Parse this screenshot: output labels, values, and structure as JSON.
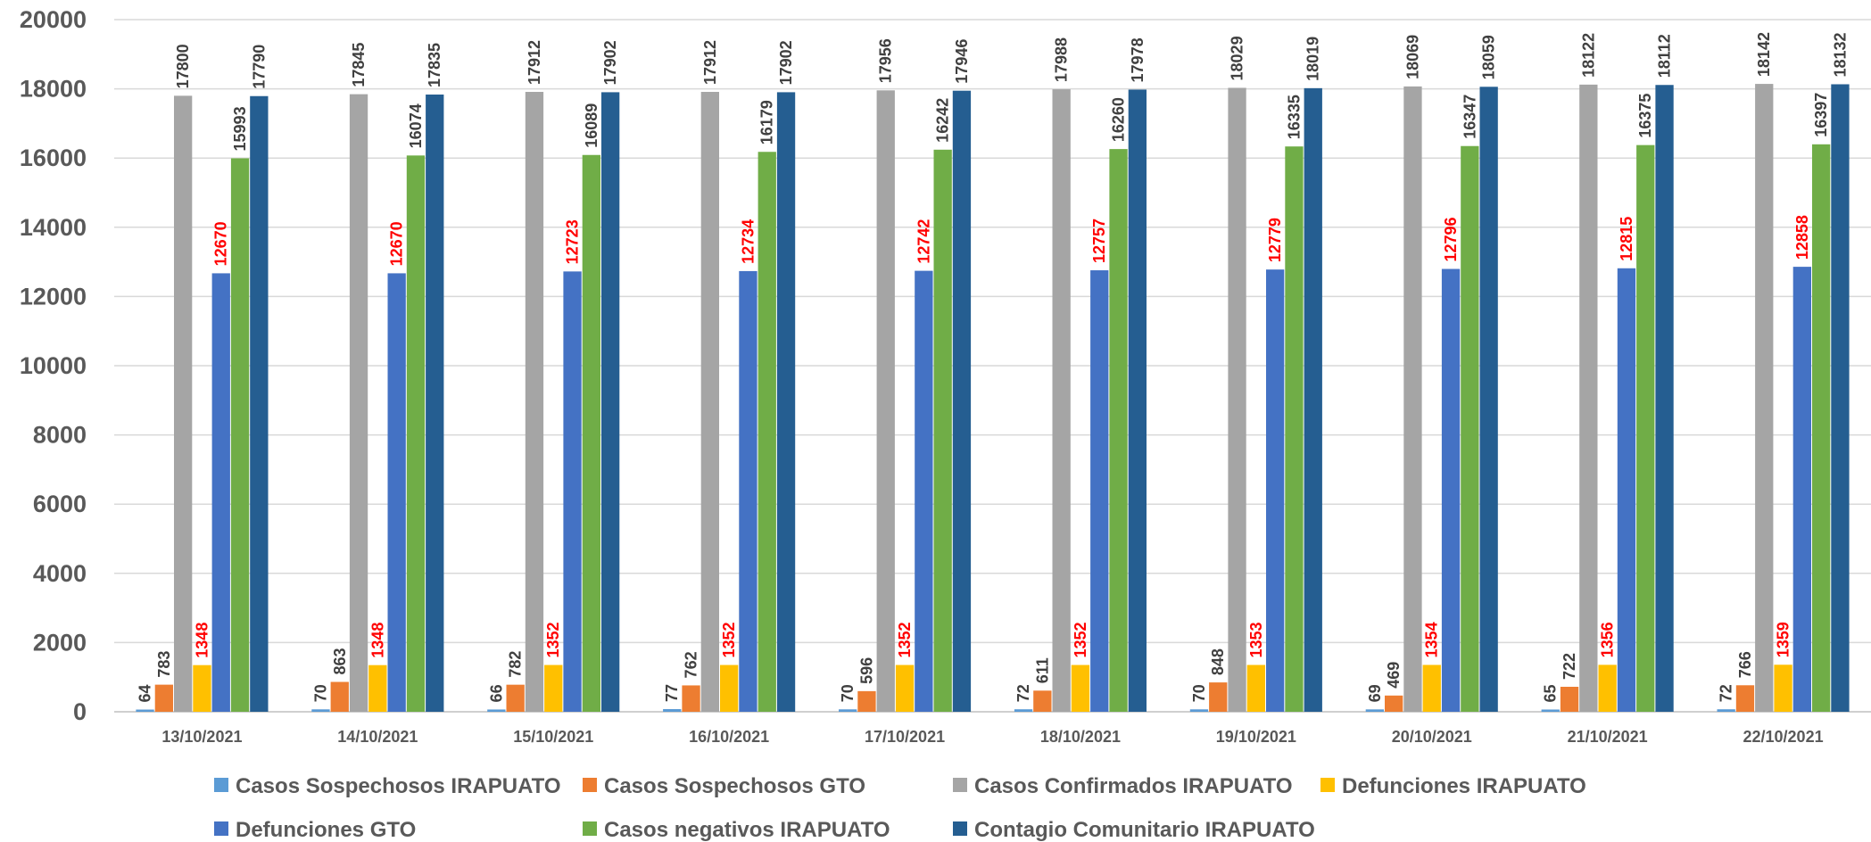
{
  "chart_data": {
    "type": "bar",
    "categories": [
      "13/10/2021",
      "14/10/2021",
      "15/10/2021",
      "16/10/2021",
      "17/10/2021",
      "18/10/2021",
      "19/10/2021",
      "20/10/2021",
      "21/10/2021",
      "22/10/2021"
    ],
    "ylim": [
      0,
      20000
    ],
    "yticks": [
      0,
      2000,
      4000,
      6000,
      8000,
      10000,
      12000,
      14000,
      16000,
      18000,
      20000
    ],
    "grid": true,
    "legend_position": "bottom",
    "series": [
      {
        "name": "Casos Sospechosos IRAPUATO",
        "color": "#5b9bd5",
        "label_color": "#404040",
        "values": [
          64,
          70,
          66,
          77,
          70,
          72,
          70,
          69,
          65,
          72
        ]
      },
      {
        "name": "Casos Sospechosos GTO",
        "color": "#ed7d31",
        "label_color": "#404040",
        "values": [
          783,
          863,
          782,
          762,
          596,
          611,
          848,
          469,
          722,
          766
        ]
      },
      {
        "name": "Casos Confirmados IRAPUATO",
        "color": "#a5a5a5",
        "label_color": "#404040",
        "values": [
          17800,
          17845,
          17912,
          17912,
          17956,
          17988,
          18029,
          18069,
          18122,
          18142
        ]
      },
      {
        "name": "Defunciones IRAPUATO",
        "color": "#ffc000",
        "label_color": "#ff0000",
        "values": [
          1348,
          1348,
          1352,
          1352,
          1352,
          1352,
          1353,
          1354,
          1356,
          1359
        ]
      },
      {
        "name": "Defunciones GTO",
        "color": "#4472c4",
        "label_color": "#ff0000",
        "values": [
          12670,
          12670,
          12723,
          12734,
          12742,
          12757,
          12779,
          12796,
          12815,
          12858
        ]
      },
      {
        "name": "Casos negativos IRAPUATO",
        "color": "#70ad47",
        "label_color": "#404040",
        "values": [
          15993,
          16074,
          16089,
          16179,
          16242,
          16260,
          16335,
          16347,
          16375,
          16397
        ]
      },
      {
        "name": "Contagio Comunitario IRAPUATO",
        "color": "#255e91",
        "label_color": "#404040",
        "values": [
          17790,
          17835,
          17902,
          17902,
          17946,
          17978,
          18019,
          18059,
          18112,
          18132
        ]
      }
    ]
  }
}
